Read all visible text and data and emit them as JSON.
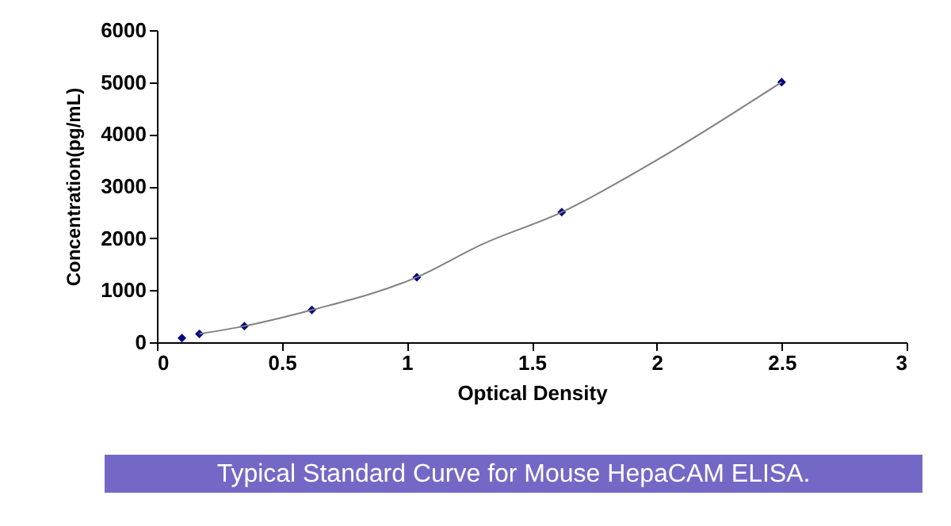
{
  "chart_data": {
    "type": "scatter",
    "xlabel": "Optical Density",
    "ylabel": "Concentration(pg/mL)",
    "xlim": [
      0,
      3
    ],
    "xticks": [
      0,
      0.5,
      1,
      1.5,
      2,
      2.5,
      3
    ],
    "ylim": [
      0,
      6000
    ],
    "yticks": [
      0,
      1000,
      2000,
      3000,
      4000,
      5000,
      6000
    ],
    "grid": false,
    "marker": "diamond",
    "series": [
      {
        "color": "#000080",
        "x": [
          0.1,
          0.17,
          0.35,
          0.62,
          1.04,
          1.62,
          2.5
        ],
        "values": [
          80,
          160,
          310,
          620,
          1250,
          2500,
          5000
        ]
      },
      {
        "type": "line",
        "color": "#808080",
        "line_style": "solid",
        "marker": "none",
        "x": [
          0.17,
          0.35,
          0.62,
          1.04,
          1.3,
          1.62,
          2.0,
          2.5
        ],
        "values": [
          160,
          310,
          620,
          1250,
          1880,
          2500,
          3500,
          5000
        ]
      }
    ],
    "annotations": [
      "Typical Standard Curve for Mouse HepaCAM ELISA."
    ]
  }
}
